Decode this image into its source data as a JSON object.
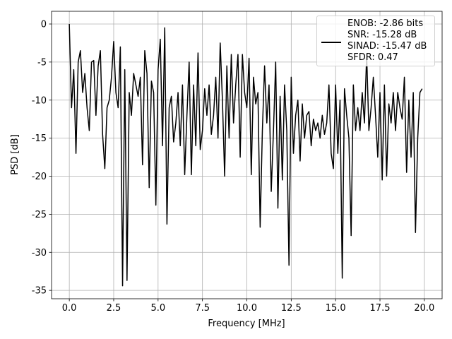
{
  "chart_data": {
    "type": "line",
    "xlabel": "Frequency [MHz]",
    "ylabel": "PSD [dB]",
    "xlim": [
      -1.0,
      21.0
    ],
    "ylim": [
      -36.1,
      1.67
    ],
    "xticks": [
      {
        "value": 0,
        "label": "0.0"
      },
      {
        "value": 2.5,
        "label": "2.5"
      },
      {
        "value": 5,
        "label": "5.0"
      },
      {
        "value": 7.5,
        "label": "7.5"
      },
      {
        "value": 10,
        "label": "10.0"
      },
      {
        "value": 12.5,
        "label": "12.5"
      },
      {
        "value": 15,
        "label": "15.0"
      },
      {
        "value": 17.5,
        "label": "17.5"
      },
      {
        "value": 20,
        "label": "20.0"
      }
    ],
    "yticks": [
      0,
      -5,
      -10,
      -15,
      -20,
      -25,
      -30,
      -35
    ],
    "grid": true,
    "legend": "upper right",
    "x": [
      0,
      0.125,
      0.25,
      0.375,
      0.5,
      0.625,
      0.75,
      0.875,
      1,
      1.125,
      1.25,
      1.375,
      1.5,
      1.625,
      1.75,
      1.875,
      2,
      2.125,
      2.25,
      2.375,
      2.5,
      2.625,
      2.75,
      2.875,
      3,
      3.125,
      3.25,
      3.375,
      3.5,
      3.625,
      3.75,
      3.875,
      4,
      4.125,
      4.25,
      4.375,
      4.5,
      4.625,
      4.75,
      4.875,
      5,
      5.125,
      5.25,
      5.375,
      5.5,
      5.625,
      5.75,
      5.875,
      6,
      6.125,
      6.25,
      6.375,
      6.5,
      6.625,
      6.75,
      6.875,
      7,
      7.125,
      7.25,
      7.375,
      7.5,
      7.625,
      7.75,
      7.875,
      8,
      8.125,
      8.25,
      8.375,
      8.5,
      8.625,
      8.75,
      8.875,
      9,
      9.125,
      9.25,
      9.375,
      9.5,
      9.625,
      9.75,
      9.875,
      10,
      10.125,
      10.25,
      10.375,
      10.5,
      10.625,
      10.75,
      10.875,
      11,
      11.125,
      11.25,
      11.375,
      11.5,
      11.625,
      11.75,
      11.875,
      12,
      12.125,
      12.25,
      12.375,
      12.5,
      12.625,
      12.75,
      12.875,
      13,
      13.125,
      13.25,
      13.375,
      13.5,
      13.625,
      13.75,
      13.875,
      14,
      14.125,
      14.25,
      14.375,
      14.5,
      14.625,
      14.75,
      14.875,
      15,
      15.125,
      15.25,
      15.375,
      15.5,
      15.625,
      15.75,
      15.875,
      16,
      16.125,
      16.25,
      16.375,
      16.5,
      16.625,
      16.75,
      16.875,
      17,
      17.125,
      17.25,
      17.375,
      17.5,
      17.625,
      17.75,
      17.875,
      18,
      18.125,
      18.25,
      18.375,
      18.5,
      18.625,
      18.75,
      18.875,
      19,
      19.125,
      19.25,
      19.375,
      19.5,
      19.625,
      19.75,
      19.875
    ],
    "series": [
      {
        "name": "ENOB: -2.86 bits\nSNR: -15.28 dB\nSINAD: -15.47 dB\nSFDR: 0.47",
        "color": "#000000",
        "values": [
          0,
          -11,
          -6,
          -17,
          -5,
          -3.5,
          -9,
          -6.5,
          -11,
          -14,
          -5,
          -4.8,
          -12,
          -5.5,
          -3.5,
          -14.5,
          -19,
          -11,
          -10,
          -7,
          -2.3,
          -9,
          -11,
          -3,
          -34.4,
          -6,
          -33.7,
          -9,
          -12,
          -6.5,
          -8,
          -9.5,
          -7,
          -18.5,
          -3.5,
          -6.5,
          -21.5,
          -7.5,
          -9,
          -23.8,
          -6,
          -2,
          -16,
          -0.5,
          -26.3,
          -11,
          -9.5,
          -15.5,
          -13,
          -9,
          -16,
          -8,
          -19.8,
          -12,
          -5,
          -19.8,
          -8,
          -16,
          -3.8,
          -16.5,
          -14,
          -8.5,
          -12,
          -8,
          -14.5,
          -12,
          -7,
          -15,
          -2.5,
          -10,
          -20,
          -5.5,
          -15,
          -4,
          -13,
          -8,
          -4,
          -17.5,
          -4,
          -9,
          -11,
          -4.5,
          -19.8,
          -7,
          -10.5,
          -9,
          -26.7,
          -14,
          -5.5,
          -13,
          -8,
          -22,
          -14,
          -5,
          -24.2,
          -9.5,
          -20.5,
          -8,
          -14,
          -31.7,
          -7,
          -17,
          -12,
          -10,
          -18,
          -10.5,
          -15,
          -12,
          -11.5,
          -16,
          -12.5,
          -14,
          -13,
          -15,
          -12,
          -14.5,
          -13,
          -8,
          -17,
          -19,
          -8,
          -17,
          -10,
          -33.4,
          -8.5,
          -12,
          -15,
          -27.8,
          -8,
          -14,
          -11,
          -14,
          -9,
          -13,
          -4,
          -14,
          -11,
          -7,
          -12,
          -17.5,
          -9,
          -20.5,
          -8,
          -20,
          -10.5,
          -13,
          -9,
          -14,
          -9,
          -11,
          -12.5,
          -7,
          -19.5,
          -10,
          -17.5,
          -9,
          -27.4,
          -15,
          -9,
          -8.5
        ]
      }
    ]
  }
}
